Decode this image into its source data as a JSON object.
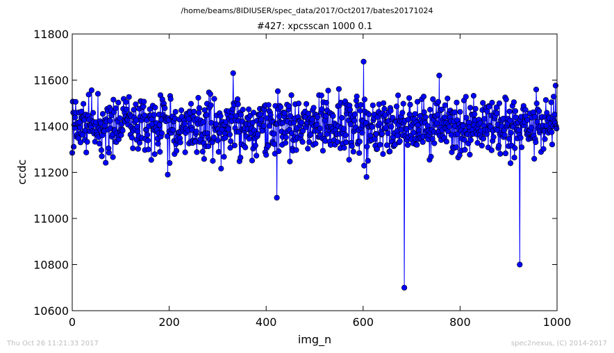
{
  "figure": {
    "suptitle": "/home/beams/8IDIUSER/spec_data/2017/Oct2017/bates20171024",
    "footer_left": "Thu Oct 26 11:21:33 2017",
    "footer_right": "spec2nexus, (C) 2014-2017"
  },
  "chart_data": {
    "type": "line",
    "title": "#427: xpcsscan 1000 0.1",
    "xlabel": "img_n",
    "ylabel": "ccdc",
    "xlim": [
      0,
      1000
    ],
    "ylim": [
      10600,
      11800
    ],
    "xticks": [
      0,
      200,
      400,
      600,
      800,
      1000
    ],
    "yticks": [
      10600,
      10800,
      11000,
      11200,
      11400,
      11600,
      11800
    ],
    "grid": false,
    "legend": "none",
    "series_color": "#0000ff",
    "marker": "circle",
    "noise": {
      "n_points": 1000,
      "x_start": 0,
      "x_end": 999,
      "center": 11400,
      "spread": 120,
      "seed": 427
    },
    "notable_points": [
      {
        "x": 422,
        "y": 11090
      },
      {
        "x": 601,
        "y": 11680
      },
      {
        "x": 685,
        "y": 10700
      },
      {
        "x": 923,
        "y": 10800
      },
      {
        "x": 332,
        "y": 11630
      },
      {
        "x": 757,
        "y": 11620
      },
      {
        "x": 197,
        "y": 11190
      },
      {
        "x": 607,
        "y": 11180
      }
    ]
  }
}
